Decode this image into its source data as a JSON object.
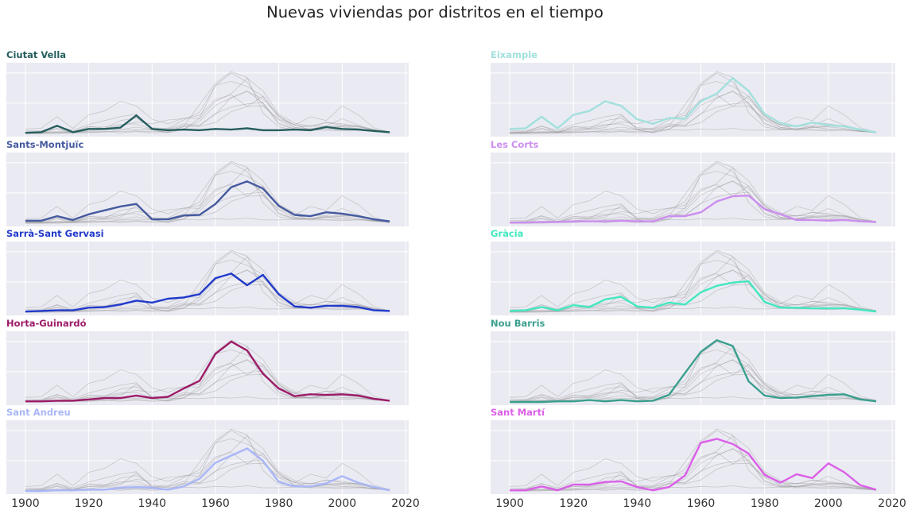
{
  "chart_data": {
    "type": "line",
    "title": "Nuevas viviendas por distritos en el tiempo",
    "xlabel": "",
    "ylabel": "",
    "x": [
      1900,
      1905,
      1910,
      1915,
      1920,
      1925,
      1930,
      1935,
      1940,
      1945,
      1950,
      1955,
      1960,
      1965,
      1970,
      1975,
      1980,
      1985,
      1990,
      1995,
      2000,
      2005,
      2010,
      2015
    ],
    "xlim": [
      1894,
      2021
    ],
    "xticks": [
      1900,
      1920,
      1940,
      1960,
      1980,
      2000,
      2020
    ],
    "ylim": [
      0,
      1
    ],
    "grid": true,
    "series": [
      {
        "name": "Ciutat Vella",
        "color": "#265e5e",
        "values": [
          0.01,
          0.02,
          0.12,
          0.02,
          0.07,
          0.07,
          0.09,
          0.28,
          0.07,
          0.05,
          0.06,
          0.05,
          0.07,
          0.06,
          0.08,
          0.05,
          0.05,
          0.06,
          0.05,
          0.1,
          0.07,
          0.06,
          0.04,
          0.02
        ]
      },
      {
        "name": "Eixample",
        "color": "#a2e0dd",
        "values": [
          0.07,
          0.08,
          0.26,
          0.08,
          0.29,
          0.35,
          0.5,
          0.43,
          0.22,
          0.15,
          0.24,
          0.23,
          0.5,
          0.62,
          0.86,
          0.66,
          0.3,
          0.16,
          0.11,
          0.17,
          0.13,
          0.11,
          0.06,
          0.02
        ]
      },
      {
        "name": "Sants-Montjuïc",
        "color": "#455a9f",
        "values": [
          0.04,
          0.04,
          0.11,
          0.05,
          0.14,
          0.2,
          0.26,
          0.3,
          0.06,
          0.06,
          0.12,
          0.13,
          0.3,
          0.56,
          0.65,
          0.54,
          0.27,
          0.13,
          0.11,
          0.17,
          0.15,
          0.11,
          0.06,
          0.03
        ]
      },
      {
        "name": "Les Corts",
        "color": "#cc8eef",
        "values": [
          0.01,
          0.01,
          0.02,
          0.02,
          0.03,
          0.03,
          0.03,
          0.04,
          0.03,
          0.03,
          0.11,
          0.11,
          0.17,
          0.34,
          0.42,
          0.43,
          0.22,
          0.14,
          0.05,
          0.05,
          0.04,
          0.05,
          0.03,
          0.02
        ]
      },
      {
        "name": "Sarrà-Sant Gervasi",
        "color": "#213acb",
        "values": [
          0.01,
          0.02,
          0.03,
          0.03,
          0.07,
          0.08,
          0.12,
          0.18,
          0.15,
          0.21,
          0.23,
          0.28,
          0.53,
          0.6,
          0.42,
          0.58,
          0.28,
          0.09,
          0.07,
          0.1,
          0.1,
          0.08,
          0.03,
          0.02
        ]
      },
      {
        "name": "Gràcia",
        "color": "#43e8c0",
        "values": [
          0.02,
          0.03,
          0.08,
          0.03,
          0.11,
          0.08,
          0.2,
          0.24,
          0.09,
          0.07,
          0.15,
          0.12,
          0.31,
          0.41,
          0.46,
          0.48,
          0.16,
          0.07,
          0.07,
          0.06,
          0.06,
          0.06,
          0.04,
          0.01
        ]
      },
      {
        "name": "Horta-Guinardó",
        "color": "#9c1b68",
        "values": [
          0.01,
          0.01,
          0.02,
          0.02,
          0.04,
          0.06,
          0.06,
          0.1,
          0.06,
          0.08,
          0.21,
          0.33,
          0.75,
          0.94,
          0.8,
          0.44,
          0.21,
          0.09,
          0.12,
          0.11,
          0.12,
          0.1,
          0.05,
          0.02
        ]
      },
      {
        "name": "Nou Barris",
        "color": "#3a9f8e",
        "values": [
          0.0,
          0.0,
          0.0,
          0.01,
          0.01,
          0.03,
          0.01,
          0.03,
          0.01,
          0.02,
          0.11,
          0.45,
          0.78,
          0.96,
          0.87,
          0.32,
          0.1,
          0.06,
          0.07,
          0.09,
          0.11,
          0.12,
          0.04,
          0.01
        ]
      },
      {
        "name": "Sant Andreu",
        "color": "#a9b7f7",
        "values": [
          0.0,
          0.0,
          0.01,
          0.01,
          0.02,
          0.02,
          0.05,
          0.06,
          0.05,
          0.02,
          0.07,
          0.19,
          0.44,
          0.55,
          0.66,
          0.47,
          0.14,
          0.07,
          0.07,
          0.12,
          0.23,
          0.13,
          0.06,
          0.01
        ]
      },
      {
        "name": "Sant Martí",
        "color": "#db5fe8",
        "values": [
          0.01,
          0.01,
          0.07,
          0.01,
          0.1,
          0.1,
          0.14,
          0.15,
          0.06,
          0.01,
          0.06,
          0.24,
          0.75,
          0.81,
          0.73,
          0.58,
          0.25,
          0.13,
          0.26,
          0.2,
          0.43,
          0.29,
          0.09,
          0.02
        ]
      }
    ]
  }
}
